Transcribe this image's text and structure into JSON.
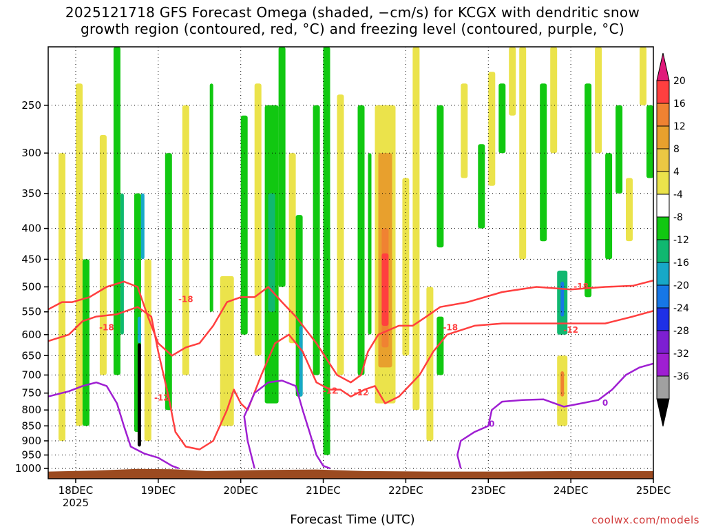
{
  "header": {
    "title_line1": "2025121718 GFS Forecast Omega (shaded, −cm/s) for KCGX with dendritic snow",
    "title_line2": "growth region (contoured, red, °C) and freezing level (contoured, purple, °C)"
  },
  "footer": {
    "xlabel": "Forecast Time (UTC)",
    "credit": "coolwx.com/models"
  },
  "chart_data": {
    "type": "time-height",
    "x_range_hours": [
      -2,
      174
    ],
    "y_scale": "log-pressure",
    "y_range_hpa": [
      1040,
      200
    ],
    "x_ticks": [
      {
        "hour": 6,
        "label": "18DEC",
        "sublabel": "2025"
      },
      {
        "hour": 30,
        "label": "19DEC"
      },
      {
        "hour": 54,
        "label": "20DEC"
      },
      {
        "hour": 78,
        "label": "21DEC"
      },
      {
        "hour": 102,
        "label": "22DEC"
      },
      {
        "hour": 126,
        "label": "23DEC"
      },
      {
        "hour": 150,
        "label": "24DEC"
      },
      {
        "hour": 174,
        "label": "25DEC"
      }
    ],
    "y_ticks": [
      250,
      300,
      350,
      400,
      450,
      500,
      550,
      600,
      650,
      700,
      750,
      800,
      850,
      900,
      950,
      1000
    ],
    "colorbar": {
      "levels": [
        20,
        16,
        12,
        8,
        4,
        -4,
        -8,
        -12,
        -16,
        -20,
        -24,
        -28,
        -32,
        -36
      ],
      "colors": [
        "#ff3f3f",
        "#f08232",
        "#e8a02d",
        "#ebc843",
        "#ebe34b",
        "#ffffff",
        "#11c811",
        "#10b870",
        "#17a8c8",
        "#1677e6",
        "#1e30e6",
        "#7d1fd2",
        "#9f1fd2",
        "#a0a0a0",
        "#000000"
      ],
      "top_cap_color": "#e0197a",
      "bottom_cap_color": "#000000"
    },
    "shaded_regions": [
      {
        "t0": 1,
        "t1": 3,
        "p_top": 300,
        "p_bot": 900,
        "val": 6
      },
      {
        "t0": 6,
        "t1": 8,
        "p_top": 230,
        "p_bot": 850,
        "val": 6
      },
      {
        "t0": 8,
        "t1": 10,
        "p_top": 450,
        "p_bot": 850,
        "val": -6
      },
      {
        "t0": 13,
        "t1": 15,
        "p_top": 280,
        "p_bot": 700,
        "val": 6
      },
      {
        "t0": 17,
        "t1": 19,
        "p_top": 200,
        "p_bot": 700,
        "val": -6
      },
      {
        "t0": 19,
        "t1": 20,
        "p_top": 350,
        "p_bot": 600,
        "val": -10
      },
      {
        "t0": 23,
        "t1": 25,
        "p_top": 350,
        "p_bot": 870,
        "val": -6
      },
      {
        "t0": 25,
        "t1": 26,
        "p_top": 350,
        "p_bot": 450,
        "val": -14
      },
      {
        "t0": 24,
        "t1": 25,
        "p_top": 620,
        "p_bot": 920,
        "val": -40
      },
      {
        "t0": 24,
        "t1": 25,
        "p_top": 560,
        "p_bot": 620,
        "val": -14
      },
      {
        "t0": 26,
        "t1": 28,
        "p_top": 450,
        "p_bot": 900,
        "val": 6
      },
      {
        "t0": 32,
        "t1": 34,
        "p_top": 300,
        "p_bot": 800,
        "val": -6
      },
      {
        "t0": 37,
        "t1": 39,
        "p_top": 250,
        "p_bot": 700,
        "val": 6
      },
      {
        "t0": 45,
        "t1": 46,
        "p_top": 230,
        "p_bot": 550,
        "val": -6
      },
      {
        "t0": 48,
        "t1": 52,
        "p_top": 480,
        "p_bot": 850,
        "val": 6
      },
      {
        "t0": 54,
        "t1": 56,
        "p_top": 260,
        "p_bot": 600,
        "val": -6
      },
      {
        "t0": 58,
        "t1": 60,
        "p_top": 230,
        "p_bot": 650,
        "val": 6
      },
      {
        "t0": 61,
        "t1": 65,
        "p_top": 250,
        "p_bot": 780,
        "val": -6
      },
      {
        "t0": 62,
        "t1": 64,
        "p_top": 350,
        "p_bot": 550,
        "val": -10
      },
      {
        "t0": 65,
        "t1": 67,
        "p_top": 200,
        "p_bot": 500,
        "val": -6
      },
      {
        "t0": 68,
        "t1": 70,
        "p_top": 300,
        "p_bot": 620,
        "val": 6
      },
      {
        "t0": 70,
        "t1": 72,
        "p_top": 380,
        "p_bot": 760,
        "val": -6
      },
      {
        "t0": 71,
        "t1": 72,
        "p_top": 580,
        "p_bot": 760,
        "val": -14
      },
      {
        "t0": 75,
        "t1": 77,
        "p_top": 250,
        "p_bot": 700,
        "val": -6
      },
      {
        "t0": 78,
        "t1": 80,
        "p_top": 200,
        "p_bot": 950,
        "val": -6
      },
      {
        "t0": 82,
        "t1": 84,
        "p_top": 240,
        "p_bot": 700,
        "val": 6
      },
      {
        "t0": 88,
        "t1": 90,
        "p_top": 250,
        "p_bot": 700,
        "val": -6
      },
      {
        "t0": 91,
        "t1": 92,
        "p_top": 300,
        "p_bot": 600,
        "val": -6
      },
      {
        "t0": 93,
        "t1": 99,
        "p_top": 250,
        "p_bot": 780,
        "val": 6
      },
      {
        "t0": 94,
        "t1": 98,
        "p_top": 300,
        "p_bot": 680,
        "val": 10
      },
      {
        "t0": 95,
        "t1": 97,
        "p_top": 400,
        "p_bot": 630,
        "val": 14
      },
      {
        "t0": 95,
        "t1": 97,
        "p_top": 440,
        "p_bot": 580,
        "val": 18
      },
      {
        "t0": 101,
        "t1": 103,
        "p_top": 330,
        "p_bot": 650,
        "val": 6
      },
      {
        "t0": 104,
        "t1": 106,
        "p_top": 200,
        "p_bot": 800,
        "val": 6
      },
      {
        "t0": 108,
        "t1": 110,
        "p_top": 500,
        "p_bot": 900,
        "val": 6
      },
      {
        "t0": 111,
        "t1": 113,
        "p_top": 250,
        "p_bot": 430,
        "val": -6
      },
      {
        "t0": 111,
        "t1": 113,
        "p_top": 560,
        "p_bot": 700,
        "val": -6
      },
      {
        "t0": 118,
        "t1": 120,
        "p_top": 230,
        "p_bot": 330,
        "val": 6
      },
      {
        "t0": 123,
        "t1": 125,
        "p_top": 290,
        "p_bot": 400,
        "val": -6
      },
      {
        "t0": 126,
        "t1": 128,
        "p_top": 220,
        "p_bot": 340,
        "val": 6
      },
      {
        "t0": 129,
        "t1": 131,
        "p_top": 230,
        "p_bot": 300,
        "val": -6
      },
      {
        "t0": 132,
        "t1": 134,
        "p_top": 200,
        "p_bot": 260,
        "val": 6
      },
      {
        "t0": 135,
        "t1": 137,
        "p_top": 200,
        "p_bot": 450,
        "val": 6
      },
      {
        "t0": 141,
        "t1": 143,
        "p_top": 230,
        "p_bot": 420,
        "val": -6
      },
      {
        "t0": 144,
        "t1": 146,
        "p_top": 200,
        "p_bot": 300,
        "val": 6
      },
      {
        "t0": 146,
        "t1": 149,
        "p_top": 470,
        "p_bot": 600,
        "val": -10
      },
      {
        "t0": 147,
        "t1": 148,
        "p_top": 490,
        "p_bot": 560,
        "val": -18
      },
      {
        "t0": 146,
        "t1": 149,
        "p_top": 650,
        "p_bot": 850,
        "val": 6
      },
      {
        "t0": 147,
        "t1": 148,
        "p_top": 690,
        "p_bot": 760,
        "val": 14
      },
      {
        "t0": 154,
        "t1": 156,
        "p_top": 230,
        "p_bot": 520,
        "val": -6
      },
      {
        "t0": 157,
        "t1": 159,
        "p_top": 200,
        "p_bot": 300,
        "val": 6
      },
      {
        "t0": 160,
        "t1": 162,
        "p_top": 300,
        "p_bot": 450,
        "val": -6
      },
      {
        "t0": 163,
        "t1": 165,
        "p_top": 250,
        "p_bot": 350,
        "val": -6
      },
      {
        "t0": 166,
        "t1": 168,
        "p_top": 330,
        "p_bot": 420,
        "val": 6
      },
      {
        "t0": 170,
        "t1": 172,
        "p_top": 200,
        "p_bot": 250,
        "val": 6
      },
      {
        "t0": 172,
        "t1": 174,
        "p_top": 250,
        "p_bot": 330,
        "val": -6
      }
    ],
    "contours_dgz": [
      {
        "label": "-18",
        "label_at": [
          3,
          538
        ],
        "points": [
          [
            -2,
            545
          ],
          [
            2,
            530
          ],
          [
            5,
            530
          ],
          [
            10,
            520
          ],
          [
            15,
            500
          ],
          [
            20,
            490
          ],
          [
            24,
            500
          ],
          [
            27,
            560
          ],
          [
            30,
            620
          ],
          [
            34,
            650
          ],
          [
            38,
            630
          ],
          [
            42,
            620
          ],
          [
            46,
            580
          ],
          [
            50,
            530
          ],
          [
            54,
            520
          ],
          [
            58,
            520
          ],
          [
            62,
            500
          ],
          [
            66,
            530
          ],
          [
            70,
            560
          ],
          [
            76,
            620
          ],
          [
            82,
            700
          ],
          [
            86,
            720
          ],
          [
            89,
            700
          ],
          [
            91,
            640
          ],
          [
            94,
            600
          ],
          [
            100,
            580
          ],
          [
            104,
            580
          ],
          [
            108,
            560
          ],
          [
            112,
            540
          ],
          [
            120,
            530
          ],
          [
            130,
            510
          ],
          [
            140,
            500
          ],
          [
            150,
            505
          ],
          [
            160,
            500
          ],
          [
            168,
            498
          ],
          [
            174,
            488
          ]
        ]
      },
      {
        "label": "-12",
        "label_at": [
          13,
          570
        ],
        "points": [
          [
            -2,
            615
          ],
          [
            4,
            600
          ],
          [
            8,
            570
          ],
          [
            12,
            560
          ],
          [
            18,
            555
          ],
          [
            24,
            540
          ],
          [
            28,
            560
          ],
          [
            30,
            640
          ],
          [
            33,
            760
          ],
          [
            35,
            870
          ],
          [
            38,
            920
          ],
          [
            42,
            930
          ],
          [
            46,
            900
          ],
          [
            50,
            800
          ],
          [
            52,
            740
          ],
          [
            54,
            780
          ],
          [
            56,
            800
          ],
          [
            60,
            700
          ],
          [
            64,
            620
          ],
          [
            68,
            600
          ],
          [
            72,
            640
          ],
          [
            76,
            720
          ],
          [
            80,
            740
          ],
          [
            83,
            740
          ],
          [
            86,
            760
          ],
          [
            90,
            740
          ],
          [
            93,
            730
          ],
          [
            96,
            780
          ],
          [
            100,
            760
          ],
          [
            106,
            700
          ],
          [
            110,
            640
          ],
          [
            114,
            600
          ],
          [
            122,
            580
          ],
          [
            130,
            575
          ],
          [
            140,
            575
          ],
          [
            150,
            575
          ],
          [
            160,
            575
          ],
          [
            168,
            560
          ],
          [
            174,
            548
          ]
        ]
      },
      {
        "label": "0",
        "label_at": [
          16,
          760
        ],
        "points": [
          [
            -2,
            760
          ],
          [
            4,
            745
          ],
          [
            8,
            730
          ],
          [
            12,
            720
          ],
          [
            15,
            730
          ],
          [
            18,
            780
          ],
          [
            20,
            850
          ],
          [
            22,
            920
          ],
          [
            26,
            945
          ],
          [
            30,
            960
          ],
          [
            34,
            990
          ],
          [
            36,
            1000
          ]
        ]
      },
      {
        "label": "0",
        "label_at": [
          69,
          745
        ],
        "points": [
          [
            58,
            1000
          ],
          [
            56,
            900
          ],
          [
            55,
            820
          ],
          [
            58,
            750
          ],
          [
            62,
            720
          ],
          [
            66,
            715
          ],
          [
            70,
            730
          ],
          [
            72,
            800
          ],
          [
            74,
            870
          ],
          [
            76,
            950
          ],
          [
            78,
            990
          ],
          [
            80,
            1000
          ]
        ]
      },
      {
        "label": "0",
        "label_at": [
          125,
          850
        ],
        "points": [
          [
            118,
            1000
          ],
          [
            117,
            950
          ],
          [
            118,
            900
          ],
          [
            122,
            870
          ],
          [
            126,
            850
          ],
          [
            127,
            800
          ],
          [
            130,
            775
          ],
          [
            136,
            770
          ],
          [
            142,
            768
          ],
          [
            148,
            790
          ],
          [
            152,
            782
          ],
          [
            158,
            770
          ],
          [
            162,
            740
          ],
          [
            166,
            700
          ],
          [
            170,
            680
          ],
          [
            174,
            670
          ]
        ]
      }
    ],
    "contour_labels": [
      {
        "text": "-18",
        "t": 15,
        "p": 585,
        "color": "#ff3f3f"
      },
      {
        "text": "-12",
        "t": 31,
        "p": 765,
        "color": "#ff3f3f"
      },
      {
        "text": "-18",
        "t": 38,
        "p": 525,
        "color": "#ff3f3f"
      },
      {
        "text": "-12",
        "t": 80,
        "p": 745,
        "color": "#ff3f3f"
      },
      {
        "text": "-12",
        "t": 89,
        "p": 750,
        "color": "#ff3f3f"
      },
      {
        "text": "-18",
        "t": 115,
        "p": 585,
        "color": "#ff3f3f"
      },
      {
        "text": "-18",
        "t": 153,
        "p": 500,
        "color": "#ff3f3f"
      },
      {
        "text": "-12",
        "t": 150,
        "p": 590,
        "color": "#ff3f3f"
      },
      {
        "text": "0",
        "t": 127,
        "p": 845,
        "color": "#9f1fd2"
      },
      {
        "text": "0",
        "t": 160,
        "p": 780,
        "color": "#9f1fd2"
      }
    ],
    "terrain_color": "#9b4a20"
  }
}
